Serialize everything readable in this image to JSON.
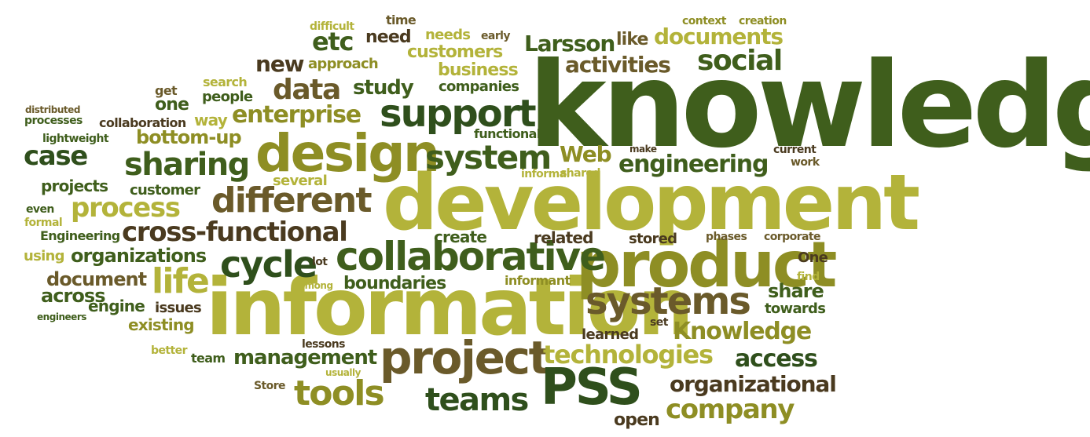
{
  "words": {
    "knowledge": "knowledge",
    "development": "development",
    "information": "information",
    "product": "product",
    "design": "design",
    "collaborative": "collaborative",
    "project": "project",
    "PSS": "PSS",
    "systems": "systems",
    "support": "support",
    "system": "system",
    "sharing": "sharing",
    "cycle": "cycle",
    "cross_functional": "cross-functional",
    "different": "different",
    "process": "process",
    "tools": "tools",
    "teams": "teams",
    "life": "life",
    "social": "social",
    "engineering": "engineering",
    "enterprise": "enterprise",
    "data": "data",
    "Knowledge": "Knowledge",
    "technologies": "technologies",
    "access": "access",
    "organizational": "organizational",
    "company": "company",
    "management": "management",
    "organizations": "organizations",
    "Larsson": "Larsson",
    "activities": "activities",
    "documents": "documents",
    "etc": "etc",
    "new": "new",
    "need": "need",
    "case": "case",
    "study": "study",
    "Web": "Web",
    "customers": "customers",
    "business": "business",
    "like": "like",
    "bottom_up": "bottom-up",
    "document": "document",
    "across": "across",
    "share": "share",
    "boundaries": "boundaries",
    "projects": "projects",
    "engine": "engine",
    "existing": "existing",
    "create": "create",
    "related": "related",
    "stored": "stored",
    "towards": "towards",
    "open": "open",
    "learned": "learned",
    "needs": "needs",
    "approach": "approach",
    "companies": "companies",
    "people": "people",
    "search": "search",
    "one": "one",
    "get": "get",
    "way": "way",
    "collaboration": "collaboration",
    "processes": "processes",
    "distributed": "distributed",
    "lightweight": "lightweight",
    "functional": "functional",
    "customer": "customer",
    "several": "several",
    "even": "even",
    "formal": "formal",
    "Engineering": "Engineering",
    "using": "using",
    "lot": "lot",
    "among": "among",
    "issues": "issues",
    "informant": "informant",
    "engineers": "engineers",
    "better": "better",
    "team": "team",
    "lessons": "lessons",
    "usually": "usually",
    "Store": "Store",
    "set": "set",
    "One": "One",
    "find": "find",
    "corporate": "corporate",
    "phases": "phases",
    "work": "work",
    "current": "current",
    "make": "make",
    "informal": "informal",
    "shared": "shared",
    "difficult": "difficult",
    "time": "time",
    "early": "early",
    "context": "context",
    "creation": "creation"
  }
}
